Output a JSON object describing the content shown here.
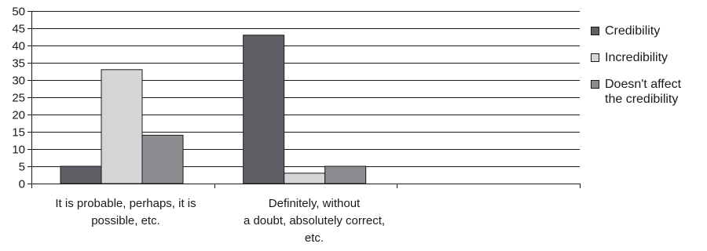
{
  "chart_data": {
    "type": "bar",
    "ylim": [
      0,
      50
    ],
    "y_ticks": [
      0,
      5,
      10,
      15,
      20,
      25,
      30,
      35,
      40,
      45,
      50
    ],
    "grid": true,
    "legend_position": "right",
    "category_count": 3,
    "categories": [
      [
        "It is probable, perhaps, it is",
        "possible, etc."
      ],
      [
        "Definitely, without",
        "a doubt, absolutely correct,",
        "etc."
      ],
      []
    ],
    "series": [
      {
        "name": "Credibility",
        "color": "#5f6065",
        "values": [
          5,
          43,
          null
        ]
      },
      {
        "name": "Incredibility",
        "color": "#d4d5d7",
        "values": [
          33,
          3,
          null
        ]
      },
      {
        "name_lines": [
          "Doesn't affect",
          "the credibility"
        ],
        "color": "#8c8d90",
        "values": [
          14,
          5,
          null
        ]
      }
    ]
  }
}
